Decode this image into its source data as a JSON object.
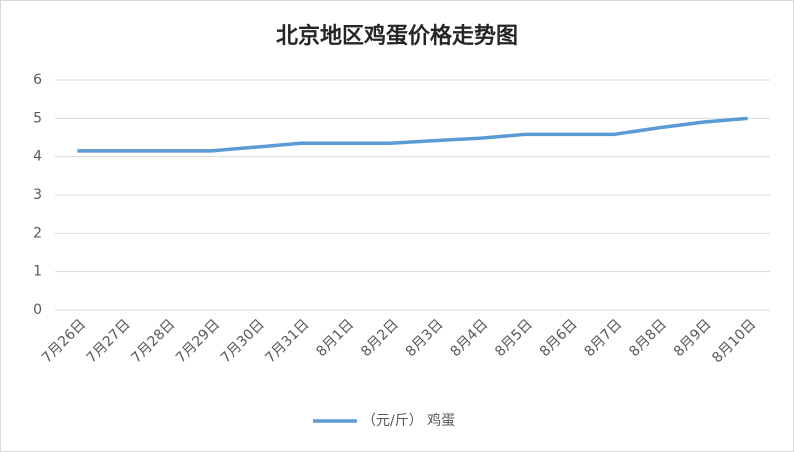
{
  "chart_data": {
    "type": "line",
    "title": "北京地区鸡蛋价格走势图",
    "categories": [
      "7月26日",
      "7月27日",
      "7月28日",
      "7月29日",
      "7月30日",
      "7月31日",
      "8月1日",
      "8月2日",
      "8月3日",
      "8月4日",
      "8月5日",
      "8月6日",
      "8月7日",
      "8月8日",
      "8月9日",
      "8月10日"
    ],
    "series": [
      {
        "name": "（元/斤） 鸡蛋",
        "color": "#5b9bd5",
        "values": [
          4.15,
          4.15,
          4.15,
          4.15,
          4.25,
          4.35,
          4.35,
          4.35,
          4.42,
          4.48,
          4.58,
          4.58,
          4.58,
          4.75,
          4.9,
          5.0
        ]
      }
    ],
    "ylim": [
      0,
      6
    ],
    "yticks": [
      0,
      1,
      2,
      3,
      4,
      5,
      6
    ],
    "grid": true,
    "legend": "bottom"
  }
}
